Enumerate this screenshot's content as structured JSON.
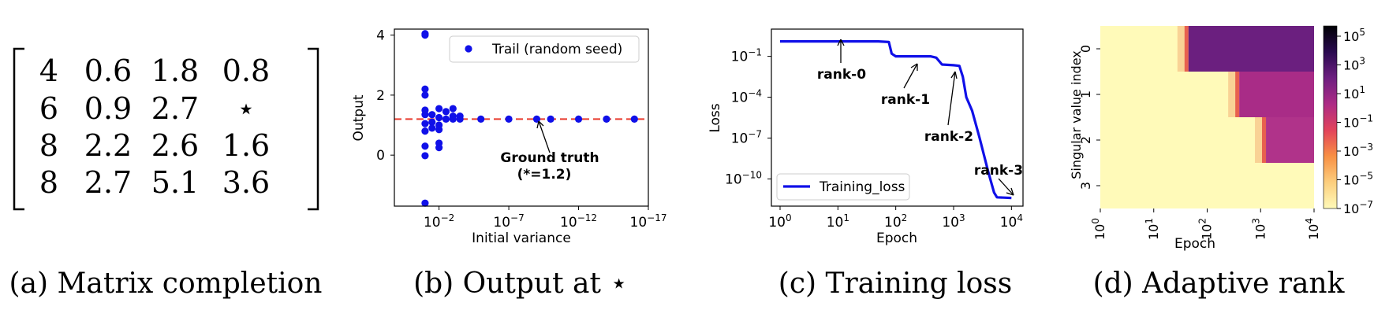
{
  "captions": {
    "a": "(a) Matrix completion",
    "b": "(b) Output at ⋆",
    "c": "(c) Training loss",
    "d": "(d) Adaptive rank"
  },
  "matrix": {
    "rows": [
      [
        "4",
        "0.6",
        "1.8",
        "0.8"
      ],
      [
        "6",
        "0.9",
        "2.7",
        "⋆"
      ],
      [
        "8",
        "2.2",
        "2.6",
        "1.6"
      ],
      [
        "8",
        "2.7",
        "5.1",
        "3.6"
      ]
    ]
  },
  "chart_data": [
    {
      "type": "scatter",
      "xlabel": "Initial variance",
      "ylabel": "Output",
      "x_scale": "log",
      "x_inverted": true,
      "xlim_exponent": [
        1.2,
        -17
      ],
      "x_ticks": [
        {
          "base": "10",
          "exp": "−2",
          "value": -2
        },
        {
          "base": "10",
          "exp": "−7",
          "value": -7
        },
        {
          "base": "10",
          "exp": "−12",
          "value": -12
        },
        {
          "base": "10",
          "exp": "−17",
          "value": -17
        }
      ],
      "ylim": [
        -1.7,
        4.2
      ],
      "y_ticks": [
        "4",
        "2",
        "0"
      ],
      "legend": {
        "label": "Trail (random seed)",
        "position": "top-right"
      },
      "reference_line": {
        "y": 1.2,
        "color": "#e8392c",
        "style": "dashed"
      },
      "annotation": {
        "text": [
          "Ground truth",
          "(*=1.2)"
        ]
      },
      "series": [
        {
          "color": "#1010e8",
          "points": [
            [
              -1,
              4.05
            ],
            [
              -1,
              4.0
            ],
            [
              -1,
              2.2
            ],
            [
              -1,
              2.0
            ],
            [
              -1,
              1.5
            ],
            [
              -1,
              1.35
            ],
            [
              -1,
              1.05
            ],
            [
              -1,
              0.8
            ],
            [
              -1,
              0.3
            ],
            [
              -1,
              -0.02
            ],
            [
              -1,
              -1.6
            ],
            [
              -1.5,
              1.35
            ],
            [
              -1.5,
              1.1
            ],
            [
              -1.5,
              0.9
            ],
            [
              -2,
              1.55
            ],
            [
              -2,
              1.25
            ],
            [
              -2,
              1.0
            ],
            [
              -2,
              0.85
            ],
            [
              -2,
              0.4
            ],
            [
              -2,
              0.25
            ],
            [
              -2.5,
              1.45
            ],
            [
              -2.5,
              1.2
            ],
            [
              -3,
              1.55
            ],
            [
              -3,
              1.3
            ],
            [
              -3,
              1.2
            ],
            [
              -3.5,
              1.3
            ],
            [
              -3.5,
              1.2
            ],
            [
              -5,
              1.2
            ],
            [
              -7,
              1.2
            ],
            [
              -9,
              1.2
            ],
            [
              -10,
              1.2
            ],
            [
              -12,
              1.2
            ],
            [
              -14,
              1.2
            ],
            [
              -16,
              1.2
            ]
          ]
        }
      ]
    },
    {
      "type": "line",
      "xlabel": "Epoch",
      "ylabel": "Loss",
      "x_scale": "log",
      "y_scale": "log",
      "xlim_exponent": [
        -0.15,
        4.2
      ],
      "ylim_exponent": [
        -12,
        1.0
      ],
      "x_ticks": [
        {
          "base": "10",
          "exp": "0",
          "value": 0
        },
        {
          "base": "10",
          "exp": "1",
          "value": 1
        },
        {
          "base": "10",
          "exp": "2",
          "value": 2
        },
        {
          "base": "10",
          "exp": "3",
          "value": 3
        },
        {
          "base": "10",
          "exp": "4",
          "value": 4
        }
      ],
      "y_ticks": [
        {
          "base": "10",
          "exp": "−1",
          "value": -1
        },
        {
          "base": "10",
          "exp": "−4",
          "value": -4
        },
        {
          "base": "10",
          "exp": "−7",
          "value": -7
        },
        {
          "base": "10",
          "exp": "−10",
          "value": -10
        }
      ],
      "legend": {
        "label": "Training_loss",
        "position": "bottom-left"
      },
      "series": [
        {
          "name": "Training_loss",
          "color": "#1010e8",
          "log10_points": [
            [
              0,
              0.1
            ],
            [
              1.7,
              0.1
            ],
            [
              1.88,
              0.05
            ],
            [
              1.93,
              -0.8
            ],
            [
              2.0,
              -1.0
            ],
            [
              2.6,
              -1.0
            ],
            [
              2.7,
              -1.1
            ],
            [
              2.8,
              -1.6
            ],
            [
              3.0,
              -1.65
            ],
            [
              3.1,
              -1.7
            ],
            [
              3.16,
              -2.5
            ],
            [
              3.22,
              -4.0
            ],
            [
              3.32,
              -5.0
            ],
            [
              3.45,
              -7.0
            ],
            [
              3.6,
              -9.5
            ],
            [
              3.7,
              -11.0
            ],
            [
              3.75,
              -11.35
            ],
            [
              4.0,
              -11.4
            ]
          ]
        }
      ],
      "annotations": [
        {
          "text": "rank-0"
        },
        {
          "text": "rank-1"
        },
        {
          "text": "rank-2"
        },
        {
          "text": "rank-3"
        }
      ]
    },
    {
      "type": "heatmap",
      "xlabel": "Epoch",
      "ylabel": "Singular value index",
      "x_scale": "log",
      "xlim_exponent": [
        0,
        4
      ],
      "x_ticks": [
        {
          "base": "10",
          "exp": "0",
          "value": 0
        },
        {
          "base": "10",
          "exp": "1",
          "value": 1
        },
        {
          "base": "10",
          "exp": "2",
          "value": 2
        },
        {
          "base": "10",
          "exp": "3",
          "value": 3
        },
        {
          "base": "10",
          "exp": "4",
          "value": 4
        }
      ],
      "rows": [
        "0",
        "1",
        "2",
        "3"
      ],
      "row_switch_log10_epoch": [
        1.65,
        2.6,
        3.1,
        null
      ],
      "row_final_colors": [
        "#6b1f7f",
        "#a92c87",
        "#b0338a",
        "#fffab9"
      ],
      "colorbar": {
        "scale": "log",
        "ticks": [
          {
            "base": "10",
            "exp": "5"
          },
          {
            "base": "10",
            "exp": "3"
          },
          {
            "base": "10",
            "exp": "1"
          },
          {
            "base": "10",
            "exp": "−1"
          },
          {
            "base": "10",
            "exp": "−3"
          },
          {
            "base": "10",
            "exp": "−5"
          },
          {
            "base": "10",
            "exp": "−7"
          }
        ],
        "colors": [
          "#fffab9",
          "#fcce7e",
          "#f89044",
          "#e2435b",
          "#ad2b85",
          "#6e1f80",
          "#2a0a50",
          "#000004"
        ]
      }
    }
  ]
}
